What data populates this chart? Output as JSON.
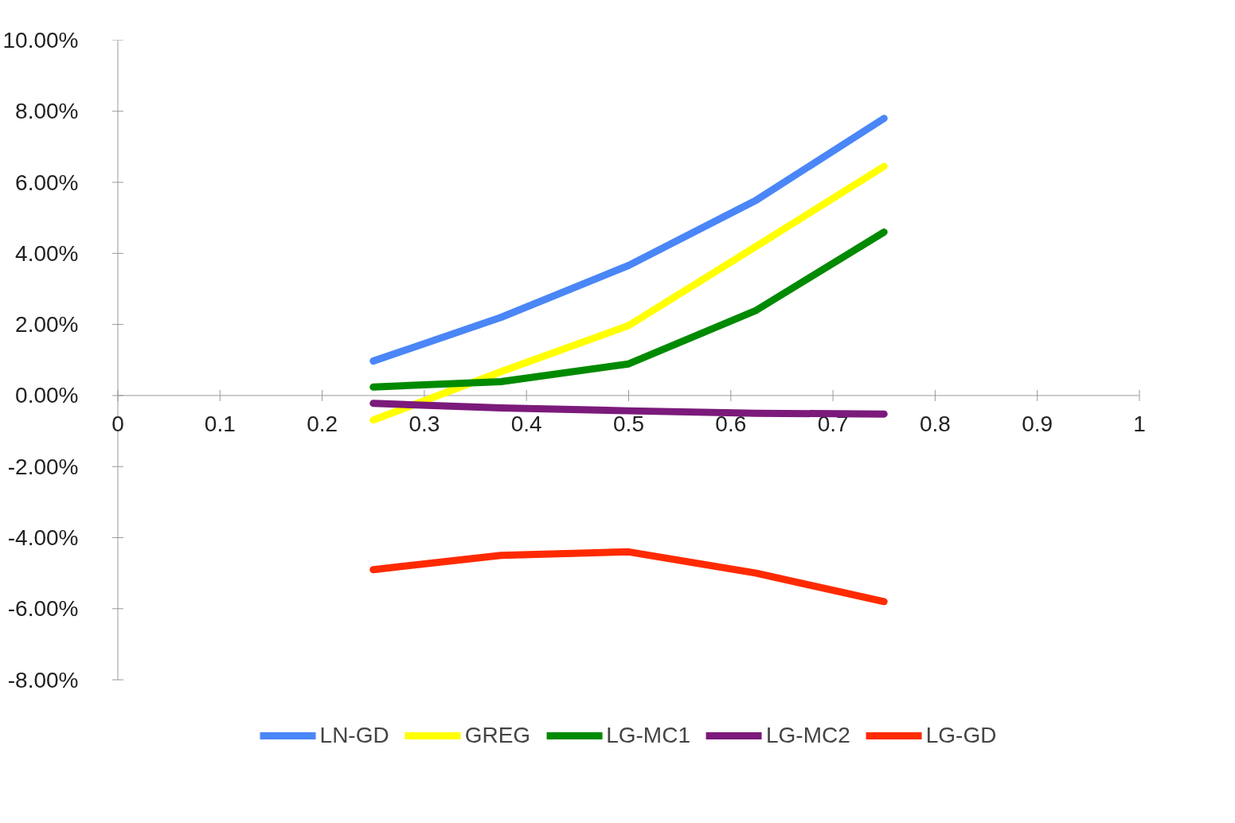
{
  "chart_data": {
    "type": "line",
    "xlim": [
      0,
      1
    ],
    "xticks": [
      0,
      0.1,
      0.2,
      0.3,
      0.4,
      0.5,
      0.6,
      0.7,
      0.8,
      0.9,
      1
    ],
    "ylim": [
      -8,
      10
    ],
    "yticks": [
      {
        "value": -8,
        "label": "-8.00%"
      },
      {
        "value": -6,
        "label": "-6.00%"
      },
      {
        "value": -4,
        "label": "-4.00%"
      },
      {
        "value": -2,
        "label": "-2.00%"
      },
      {
        "value": 0,
        "label": "0.00%"
      },
      {
        "value": 2,
        "label": "2.00%"
      },
      {
        "value": 4,
        "label": "4.00%"
      },
      {
        "value": 6,
        "label": "6.00%"
      },
      {
        "value": 8,
        "label": "8.00%"
      },
      {
        "value": 10,
        "label": "10.00%"
      }
    ],
    "x": [
      0.25,
      0.375,
      0.5,
      0.625,
      0.75
    ],
    "series": [
      {
        "name": "LN-GD",
        "color": "#4a86f7",
        "values": [
          0.97,
          2.2,
          3.66,
          5.5,
          7.8
        ]
      },
      {
        "name": "GREG",
        "color": "#ffff00",
        "values": [
          -0.69,
          0.67,
          1.97,
          4.2,
          6.45
        ]
      },
      {
        "name": "LG-MC1",
        "color": "#008a00",
        "values": [
          0.24,
          0.39,
          0.89,
          2.4,
          4.6
        ]
      },
      {
        "name": "LG-MC2",
        "color": "#7b1a7b",
        "values": [
          -0.22,
          -0.35,
          -0.43,
          -0.5,
          -0.52
        ]
      },
      {
        "name": "LG-GD",
        "color": "#ff2a00",
        "values": [
          -4.9,
          -4.5,
          -4.4,
          -5.0,
          -5.8
        ]
      }
    ],
    "grid": false,
    "legend": "bottom",
    "line_style": "solid",
    "marker": "none"
  }
}
